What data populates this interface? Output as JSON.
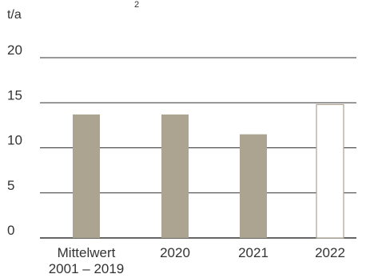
{
  "chart_data": {
    "type": "bar",
    "ylabel": "t/a",
    "top_fragment": "2",
    "categories": [
      [
        "Mittelwert",
        "2001 – 2019"
      ],
      [
        "2020"
      ],
      [
        "2021"
      ],
      [
        "2022"
      ]
    ],
    "values": [
      13.7,
      13.7,
      11.5,
      14.8
    ],
    "ylim": [
      0,
      20
    ],
    "yticks": [
      "0",
      "5",
      "10",
      "15",
      "20"
    ],
    "grid": true,
    "colors": {
      "bar_fill": "#aca391",
      "bar_outlined_fill": "#ffffff",
      "bar_outlined_stroke": "#aca391",
      "gridline": "#333333"
    },
    "bar_styles": [
      "filled",
      "filled",
      "filled",
      "outlined"
    ]
  }
}
